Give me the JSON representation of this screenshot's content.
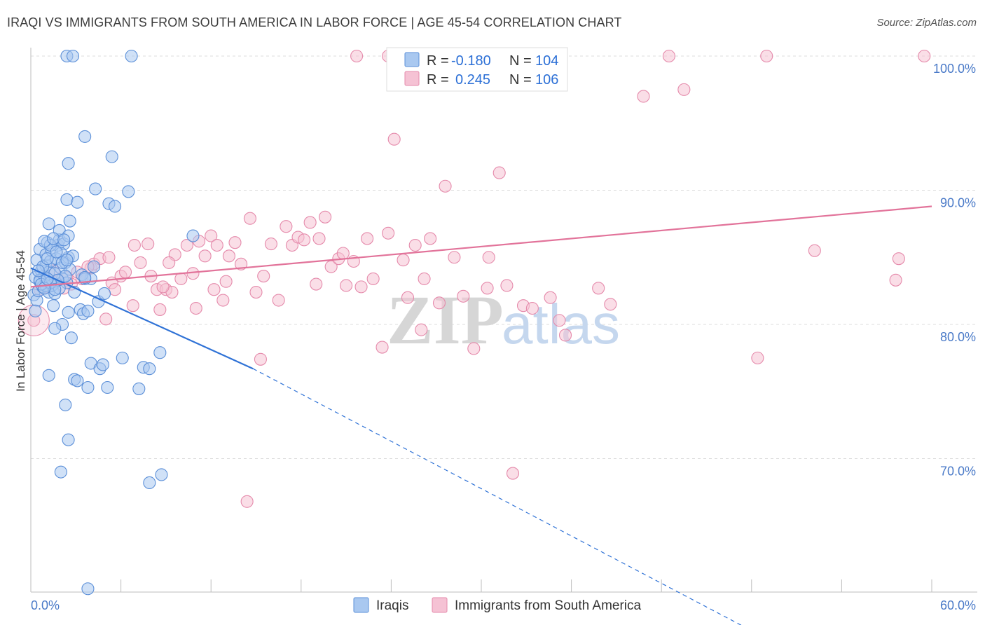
{
  "title": "IRAQI VS IMMIGRANTS FROM SOUTH AMERICA IN LABOR FORCE | AGE 45-54 CORRELATION CHART",
  "source": "Source: ZipAtlas.com",
  "watermark": {
    "zip": "ZIP",
    "atlas": "atlas"
  },
  "colors": {
    "blue_fill": "#a9c8f0",
    "blue_stroke": "#5b8fd8",
    "blue_line": "#2f72d6",
    "pink_fill": "#f5c2d4",
    "pink_stroke": "#e58aab",
    "pink_line": "#e2739a",
    "grid": "#dcdcdc",
    "tick_label": "#4a7ac8"
  },
  "legend": {
    "rows": [
      {
        "r_label": "R =",
        "r_value": "-0.180",
        "n_label": "N =",
        "n_value": "104"
      },
      {
        "r_label": "R =",
        "r_value": "0.245",
        "n_label": "N =",
        "n_value": "106"
      }
    ]
  },
  "chart_data": {
    "type": "scatter",
    "xlabel": "",
    "ylabel": "In Labor Force | Age 45-54",
    "xlim": [
      0,
      60
    ],
    "ylim": [
      60,
      100
    ],
    "x_tick_labels": [
      "0.0%",
      "60.0%"
    ],
    "y_tick_labels": [
      "70.0%",
      "80.0%",
      "90.0%",
      "100.0%"
    ],
    "y_ticks": [
      70,
      80,
      90,
      100
    ],
    "series": [
      {
        "name": "Iraqis",
        "r": -0.18,
        "n": 104,
        "trend": {
          "x_start": 0.0,
          "y_start": 84.2,
          "x_end": 14.8,
          "y_end": 76.7,
          "dash_x_end": 50.0,
          "dash_y_end": 56.0
        },
        "points": [
          [
            0.2,
            82.2
          ],
          [
            0.3,
            83.5
          ],
          [
            0.4,
            84.8
          ],
          [
            0.4,
            81.8
          ],
          [
            0.5,
            82.5
          ],
          [
            0.6,
            83.2
          ],
          [
            0.6,
            85.6
          ],
          [
            0.7,
            84.0
          ],
          [
            0.8,
            82.8
          ],
          [
            0.9,
            83.6
          ],
          [
            1.0,
            84.4
          ],
          [
            1.0,
            85.2
          ],
          [
            1.1,
            86.1
          ],
          [
            1.2,
            83.9
          ],
          [
            1.2,
            82.4
          ],
          [
            1.3,
            84.7
          ],
          [
            1.4,
            85.5
          ],
          [
            1.5,
            83.0
          ],
          [
            1.6,
            82.3
          ],
          [
            1.7,
            84.9
          ],
          [
            1.8,
            85.9
          ],
          [
            1.9,
            86.3
          ],
          [
            2.0,
            84.2
          ],
          [
            2.1,
            83.4
          ],
          [
            2.2,
            86.0
          ],
          [
            2.3,
            84.6
          ],
          [
            2.4,
            83.1
          ],
          [
            2.5,
            85.0
          ],
          [
            0.8,
            84.3
          ],
          [
            1.1,
            84.9
          ],
          [
            1.4,
            82.9
          ],
          [
            2.0,
            85.3
          ],
          [
            2.6,
            84.1
          ],
          [
            1.3,
            85.9
          ],
          [
            1.9,
            82.7
          ],
          [
            1.2,
            87.5
          ],
          [
            1.9,
            87.0
          ],
          [
            2.5,
            86.6
          ],
          [
            2.6,
            87.7
          ],
          [
            2.4,
            89.3
          ],
          [
            3.1,
            89.1
          ],
          [
            2.5,
            92.0
          ],
          [
            3.6,
            94.0
          ],
          [
            4.3,
            90.1
          ],
          [
            5.2,
            89.0
          ],
          [
            5.6,
            88.8
          ],
          [
            6.5,
            89.9
          ],
          [
            5.4,
            92.5
          ],
          [
            2.4,
            100.0
          ],
          [
            2.8,
            100.0
          ],
          [
            6.7,
            100.0
          ],
          [
            0.3,
            81.0
          ],
          [
            1.5,
            81.4
          ],
          [
            2.5,
            80.9
          ],
          [
            3.3,
            81.1
          ],
          [
            3.5,
            80.8
          ],
          [
            2.1,
            80.0
          ],
          [
            1.6,
            79.7
          ],
          [
            2.7,
            79.0
          ],
          [
            4.5,
            81.7
          ],
          [
            3.8,
            81.0
          ],
          [
            4.0,
            83.4
          ],
          [
            4.2,
            84.3
          ],
          [
            3.4,
            83.7
          ],
          [
            4.9,
            82.3
          ],
          [
            3.6,
            83.4
          ],
          [
            2.9,
            82.4
          ],
          [
            1.2,
            76.2
          ],
          [
            2.9,
            75.9
          ],
          [
            3.1,
            75.8
          ],
          [
            3.8,
            75.3
          ],
          [
            4.0,
            77.1
          ],
          [
            4.6,
            76.7
          ],
          [
            4.8,
            77.0
          ],
          [
            5.1,
            75.3
          ],
          [
            6.1,
            77.5
          ],
          [
            7.2,
            75.2
          ],
          [
            7.5,
            76.8
          ],
          [
            7.9,
            76.7
          ],
          [
            8.6,
            77.9
          ],
          [
            2.3,
            74.0
          ],
          [
            2.5,
            71.4
          ],
          [
            2.0,
            69.0
          ],
          [
            7.9,
            68.2
          ],
          [
            8.7,
            68.8
          ],
          [
            3.8,
            60.3
          ],
          [
            10.8,
            86.6
          ],
          [
            1.6,
            83.8
          ],
          [
            2.3,
            83.6
          ],
          [
            3.6,
            83.5
          ],
          [
            0.6,
            83.3
          ],
          [
            1.0,
            82.9
          ],
          [
            1.8,
            83.3
          ],
          [
            0.9,
            86.2
          ],
          [
            2.1,
            84.6
          ],
          [
            1.5,
            86.4
          ],
          [
            0.7,
            83.0
          ],
          [
            1.3,
            83.1
          ],
          [
            1.6,
            82.6
          ],
          [
            2.2,
            86.3
          ],
          [
            1.7,
            85.4
          ],
          [
            0.5,
            84.0
          ],
          [
            2.8,
            85.1
          ],
          [
            0.9,
            82.7
          ],
          [
            1.1,
            83.4
          ],
          [
            2.4,
            84.8
          ]
        ]
      },
      {
        "name": "Immigrants from South America",
        "r": 0.245,
        "n": 106,
        "trend": {
          "x_start": 0.0,
          "y_start": 82.8,
          "x_end": 60.0,
          "y_end": 88.8
        },
        "points": [
          [
            0.2,
            80.3
          ],
          [
            1.0,
            82.8
          ],
          [
            1.8,
            83.3
          ],
          [
            2.4,
            83.5
          ],
          [
            2.7,
            83.0
          ],
          [
            3.1,
            83.9
          ],
          [
            3.4,
            83.4
          ],
          [
            4.0,
            84.2
          ],
          [
            4.2,
            84.5
          ],
          [
            4.6,
            84.9
          ],
          [
            5.0,
            80.4
          ],
          [
            5.4,
            83.1
          ],
          [
            5.6,
            82.6
          ],
          [
            6.0,
            83.6
          ],
          [
            6.3,
            83.9
          ],
          [
            6.8,
            81.4
          ],
          [
            6.9,
            85.9
          ],
          [
            7.3,
            84.6
          ],
          [
            7.8,
            86.0
          ],
          [
            8.0,
            83.6
          ],
          [
            8.4,
            82.6
          ],
          [
            8.6,
            81.1
          ],
          [
            9.0,
            82.6
          ],
          [
            9.4,
            82.4
          ],
          [
            9.6,
            85.2
          ],
          [
            10.0,
            83.4
          ],
          [
            10.4,
            85.9
          ],
          [
            11.0,
            81.2
          ],
          [
            11.2,
            86.2
          ],
          [
            11.6,
            85.1
          ],
          [
            12.0,
            86.6
          ],
          [
            12.4,
            85.9
          ],
          [
            12.8,
            81.8
          ],
          [
            13.2,
            85.1
          ],
          [
            13.6,
            86.1
          ],
          [
            14.0,
            84.5
          ],
          [
            14.6,
            87.9
          ],
          [
            15.0,
            82.4
          ],
          [
            15.5,
            83.6
          ],
          [
            16.0,
            86.0
          ],
          [
            16.5,
            81.8
          ],
          [
            17.0,
            87.3
          ],
          [
            17.4,
            85.9
          ],
          [
            17.8,
            86.5
          ],
          [
            18.2,
            86.3
          ],
          [
            18.6,
            87.6
          ],
          [
            19.2,
            86.4
          ],
          [
            19.6,
            88.0
          ],
          [
            20.0,
            84.3
          ],
          [
            20.5,
            84.9
          ],
          [
            21.0,
            82.9
          ],
          [
            21.5,
            84.7
          ],
          [
            22.0,
            82.8
          ],
          [
            22.4,
            86.4
          ],
          [
            22.8,
            83.4
          ],
          [
            23.4,
            78.3
          ],
          [
            23.8,
            86.8
          ],
          [
            24.2,
            93.8
          ],
          [
            25.1,
            82.0
          ],
          [
            25.6,
            85.9
          ],
          [
            26.0,
            79.6
          ],
          [
            26.6,
            86.4
          ],
          [
            27.2,
            81.6
          ],
          [
            27.6,
            90.3
          ],
          [
            28.2,
            85.0
          ],
          [
            28.8,
            82.1
          ],
          [
            29.5,
            78.2
          ],
          [
            30.4,
            82.7
          ],
          [
            31.2,
            91.3
          ],
          [
            31.7,
            82.9
          ],
          [
            32.1,
            68.9
          ],
          [
            32.8,
            81.4
          ],
          [
            33.4,
            81.2
          ],
          [
            34.6,
            82.0
          ],
          [
            35.2,
            80.3
          ],
          [
            35.6,
            79.2
          ],
          [
            37.8,
            82.7
          ],
          [
            38.6,
            81.5
          ],
          [
            40.8,
            97.0
          ],
          [
            42.5,
            100.0
          ],
          [
            48.4,
            77.5
          ],
          [
            49.0,
            100.0
          ],
          [
            52.2,
            85.5
          ],
          [
            57.6,
            83.3
          ],
          [
            57.8,
            84.9
          ],
          [
            59.5,
            100.0
          ],
          [
            21.7,
            100.0
          ],
          [
            23.8,
            100.0
          ],
          [
            43.5,
            97.5
          ],
          [
            14.4,
            66.8
          ],
          [
            15.3,
            77.4
          ],
          [
            9.2,
            84.6
          ],
          [
            10.8,
            83.8
          ],
          [
            12.2,
            82.6
          ],
          [
            19.0,
            83.0
          ],
          [
            24.8,
            84.8
          ],
          [
            5.2,
            85.0
          ],
          [
            3.8,
            84.3
          ],
          [
            2.2,
            82.7
          ],
          [
            1.5,
            84.0
          ],
          [
            0.6,
            82.6
          ],
          [
            13.0,
            83.2
          ],
          [
            8.8,
            82.8
          ],
          [
            30.5,
            85.0
          ],
          [
            26.2,
            83.4
          ],
          [
            20.8,
            85.3
          ]
        ]
      }
    ]
  },
  "bottom_legend": {
    "items": [
      {
        "label": "Iraqis"
      },
      {
        "label": "Immigrants from South America"
      }
    ]
  }
}
